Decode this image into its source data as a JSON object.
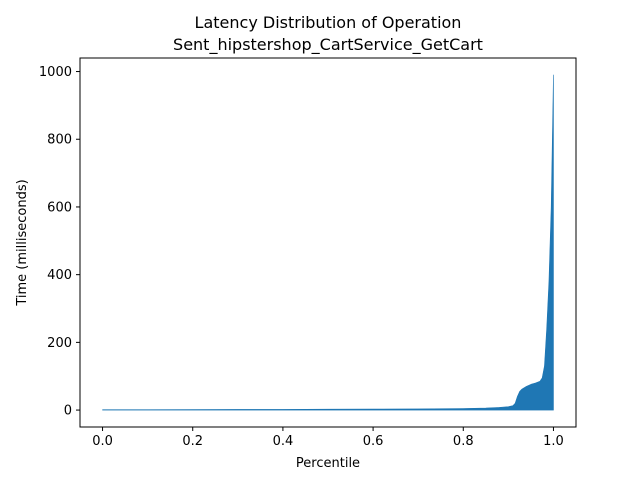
{
  "chart_data": {
    "type": "area",
    "title": "Latency Distribution of Operation",
    "subtitle": "Sent_hipstershop_CartService_GetCart",
    "xlabel": "Percentile",
    "ylabel": "Time (milliseconds)",
    "xlim": [
      -0.05,
      1.05
    ],
    "ylim": [
      -50,
      1040
    ],
    "xticks": [
      0.0,
      0.2,
      0.4,
      0.6,
      0.8,
      1.0
    ],
    "xtick_labels": [
      "0.0",
      "0.2",
      "0.4",
      "0.6",
      "0.8",
      "1.0"
    ],
    "yticks": [
      0,
      200,
      400,
      600,
      800,
      1000
    ],
    "ytick_labels": [
      "0",
      "200",
      "400",
      "600",
      "800",
      "1000"
    ],
    "grid": false,
    "series": [
      {
        "color": "#1f77b4",
        "x": [
          0.0,
          0.1,
          0.2,
          0.3,
          0.4,
          0.5,
          0.6,
          0.7,
          0.8,
          0.85,
          0.88,
          0.9,
          0.91,
          0.915,
          0.92,
          0.925,
          0.93,
          0.94,
          0.95,
          0.96,
          0.97,
          0.975,
          0.98,
          0.985,
          0.99,
          0.995,
          1.0
        ],
        "y": [
          1,
          1,
          1.5,
          2,
          2,
          2.5,
          3,
          3.5,
          4.5,
          6,
          8,
          10,
          13,
          20,
          40,
          55,
          62,
          70,
          76,
          80,
          85,
          95,
          130,
          240,
          380,
          600,
          990
        ]
      }
    ]
  }
}
